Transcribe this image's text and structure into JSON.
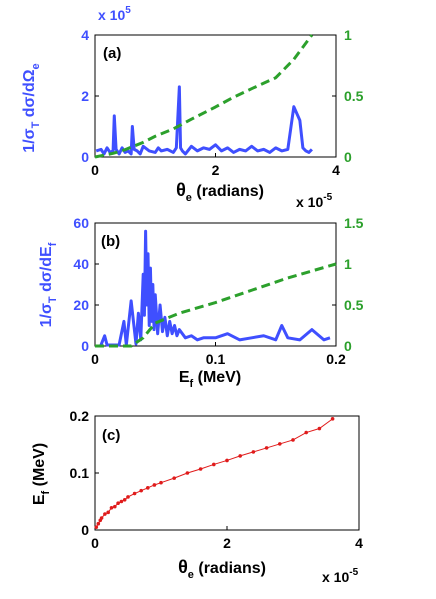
{
  "chart_data": [
    {
      "type": "line",
      "panel_label": "(a)",
      "xlabel_main": "θ",
      "xlabel_sub": "e",
      "xlabel_rest": " (radians)",
      "x_multiplier_base": "x 10",
      "x_multiplier_exp": "-5",
      "ylabel_left_main": "1/σ",
      "ylabel_left_sub1": "T",
      "ylabel_left_mid": " dσ/dΩ",
      "ylabel_left_sub2": "e",
      "y_multiplier_base": "x 10",
      "y_multiplier_exp": "5",
      "xlim": [
        0,
        4
      ],
      "ylim_left": [
        0,
        4
      ],
      "ylim_right": [
        0,
        1
      ],
      "x_ticks": [
        "0",
        "2",
        "4"
      ],
      "y_left_ticks": [
        "0",
        "2",
        "4"
      ],
      "y_right_ticks": [
        "0",
        "0.5",
        "1"
      ],
      "colors": {
        "left": "#3f4fff",
        "right": "#2ca02c"
      },
      "series": [
        {
          "axis": "left",
          "style": "solid",
          "x": [
            0.02,
            0.1,
            0.15,
            0.2,
            0.25,
            0.3,
            0.32,
            0.35,
            0.4,
            0.45,
            0.5,
            0.55,
            0.6,
            0.62,
            0.65,
            0.7,
            0.75,
            0.8,
            0.9,
            1.0,
            1.05,
            1.1,
            1.2,
            1.3,
            1.35,
            1.4,
            1.42,
            1.45,
            1.5,
            1.6,
            1.7,
            1.8,
            1.9,
            2.0,
            2.1,
            2.2,
            2.3,
            2.4,
            2.5,
            2.6,
            2.7,
            2.8,
            2.9,
            3.0,
            3.1,
            3.2,
            3.3,
            3.4,
            3.45,
            3.5,
            3.55,
            3.6
          ],
          "y": [
            0.2,
            0.25,
            0.1,
            0.3,
            0.15,
            0.2,
            1.35,
            0.25,
            0.1,
            0.3,
            0.15,
            0.2,
            0.1,
            1.0,
            0.25,
            0.2,
            0.1,
            0.35,
            0.2,
            0.15,
            0.3,
            0.2,
            0.25,
            0.15,
            0.3,
            2.3,
            0.3,
            0.2,
            0.1,
            0.35,
            0.2,
            0.3,
            0.25,
            0.4,
            0.2,
            0.3,
            0.15,
            0.25,
            0.2,
            0.35,
            0.2,
            0.25,
            0.15,
            0.3,
            0.2,
            0.25,
            1.65,
            1.2,
            0.3,
            0.2,
            0.15,
            0.25
          ]
        },
        {
          "axis": "right",
          "style": "dashed",
          "x": [
            0.0,
            0.3,
            0.5,
            0.8,
            1.0,
            1.3,
            1.6,
            2.0,
            2.3,
            2.6,
            3.0,
            3.3,
            3.6
          ],
          "y": [
            0.0,
            0.03,
            0.06,
            0.12,
            0.17,
            0.23,
            0.31,
            0.41,
            0.49,
            0.56,
            0.65,
            0.8,
            1.0
          ]
        }
      ]
    },
    {
      "type": "line",
      "panel_label": "(b)",
      "xlabel_main": "E",
      "xlabel_sub": "f",
      "xlabel_rest": " (MeV)",
      "ylabel_left_main": "1/σ",
      "ylabel_left_sub1": "T",
      "ylabel_left_mid": " dσ/dE",
      "ylabel_left_sub2": "f",
      "xlim": [
        0,
        0.2
      ],
      "ylim_left": [
        0,
        60
      ],
      "ylim_right": [
        0,
        1.5
      ],
      "x_ticks": [
        "0",
        "0.1",
        "0.2"
      ],
      "y_left_ticks": [
        "0",
        "20",
        "40",
        "60"
      ],
      "y_right_ticks": [
        "0",
        "0.5",
        "1",
        "1.5"
      ],
      "colors": {
        "left": "#3f4fff",
        "right": "#2ca02c"
      },
      "series": [
        {
          "axis": "left",
          "style": "solid",
          "x": [
            0.005,
            0.008,
            0.01,
            0.012,
            0.02,
            0.024,
            0.026,
            0.03,
            0.034,
            0.036,
            0.038,
            0.04,
            0.041,
            0.042,
            0.043,
            0.044,
            0.045,
            0.046,
            0.047,
            0.048,
            0.049,
            0.05,
            0.052,
            0.054,
            0.056,
            0.058,
            0.06,
            0.062,
            0.064,
            0.066,
            0.068,
            0.07,
            0.075,
            0.08,
            0.085,
            0.09,
            0.1,
            0.11,
            0.12,
            0.13,
            0.14,
            0.15,
            0.155,
            0.16,
            0.17,
            0.18,
            0.19,
            0.195
          ],
          "y": [
            0.5,
            5,
            0.5,
            0.5,
            0.5,
            12,
            0.5,
            22,
            1,
            16,
            3,
            35,
            15,
            56,
            20,
            45,
            10,
            38,
            12,
            30,
            8,
            25,
            6,
            20,
            7,
            14,
            5,
            12,
            6,
            10,
            5,
            8,
            4,
            5,
            3,
            4,
            4,
            6,
            3,
            4,
            5,
            3,
            10,
            4,
            3,
            8,
            3,
            4
          ]
        },
        {
          "axis": "right",
          "style": "dashed",
          "x": [
            0.0,
            0.03,
            0.04,
            0.05,
            0.07,
            0.1,
            0.13,
            0.16,
            0.2
          ],
          "y": [
            0.0,
            0.0,
            0.1,
            0.28,
            0.4,
            0.53,
            0.68,
            0.83,
            1.0
          ]
        }
      ]
    },
    {
      "type": "scatter",
      "panel_label": "(c)",
      "xlabel_main": "θ",
      "xlabel_sub": "e",
      "xlabel_rest": " (radians)",
      "x_multiplier_base": "x 10",
      "x_multiplier_exp": "-5",
      "ylabel_main": "E",
      "ylabel_sub": "f",
      "ylabel_rest": " (MeV)",
      "xlim": [
        0,
        4
      ],
      "ylim": [
        0,
        0.2
      ],
      "x_ticks": [
        "0",
        "2",
        "4"
      ],
      "y_ticks": [
        "0",
        "0.1",
        "0.2"
      ],
      "colors": {
        "points": "#e01b1b"
      },
      "series": [
        {
          "x": [
            0.02,
            0.05,
            0.08,
            0.1,
            0.15,
            0.2,
            0.25,
            0.3,
            0.35,
            0.4,
            0.45,
            0.5,
            0.6,
            0.7,
            0.8,
            0.9,
            1.0,
            1.2,
            1.4,
            1.6,
            1.8,
            2.0,
            2.2,
            2.4,
            2.6,
            2.8,
            3.0,
            3.2,
            3.4,
            3.6
          ],
          "y": [
            0.005,
            0.011,
            0.017,
            0.021,
            0.028,
            0.031,
            0.039,
            0.041,
            0.047,
            0.05,
            0.053,
            0.058,
            0.064,
            0.069,
            0.074,
            0.079,
            0.083,
            0.091,
            0.1,
            0.107,
            0.115,
            0.122,
            0.13,
            0.137,
            0.144,
            0.151,
            0.158,
            0.171,
            0.178,
            0.195
          ]
        }
      ]
    }
  ]
}
